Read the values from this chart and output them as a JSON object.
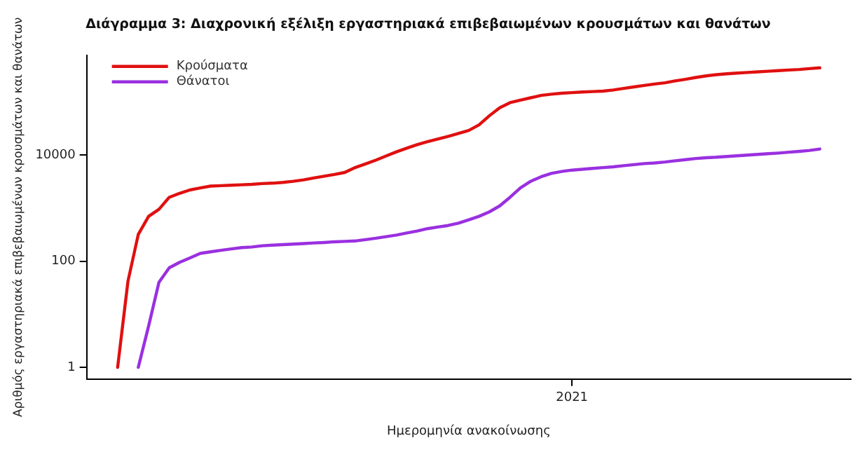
{
  "chart_data": {
    "type": "line",
    "title": "Διάγραμμα 3: Διαχρονική εξέλιξη εργαστηριακά επιβεβαιωμένων κρουσμάτων και θανάτων",
    "xlabel": "Ημερομηνία ανακοίνωσης",
    "ylabel": "Αριθμός εργαστηριακά επιβεβαιωμένων κρουσμάτων και θανάτων",
    "log": "y",
    "grid": false,
    "legend": "top left",
    "marker": "none",
    "line_style": "solid",
    "categories": [
      null,
      null,
      null,
      null,
      null,
      null,
      null,
      null,
      null,
      null,
      null,
      null,
      null,
      null,
      null,
      null,
      null,
      null,
      null,
      null,
      null,
      null,
      null,
      null,
      null,
      null,
      null,
      null,
      null,
      null,
      null,
      null,
      null,
      null,
      null,
      null,
      null,
      null,
      null,
      null,
      null,
      null,
      null,
      null,
      null,
      null,
      null,
      "2021",
      null,
      null,
      null,
      null,
      null,
      null,
      null,
      null,
      null,
      null,
      null,
      null,
      null,
      null,
      null,
      null,
      null,
      null,
      null,
      null,
      null,
      null,
      null,
      null,
      null,
      null,
      null
    ],
    "ylim": [
      0.6,
      760000
    ],
    "yticks": [
      1,
      100,
      10000
    ],
    "series": [
      {
        "name": "Κρούσματα",
        "color": "#e01010",
        "values": [
          null,
          null,
          null,
          1,
          42,
          320,
          700,
          950,
          1600,
          1900,
          2200,
          2400,
          2600,
          2650,
          2700,
          2750,
          2800,
          2900,
          2950,
          3050,
          3200,
          3400,
          3700,
          4000,
          4300,
          4700,
          5800,
          6800,
          8000,
          9600,
          11500,
          13500,
          15700,
          17800,
          20000,
          22500,
          25500,
          29000,
          37000,
          55000,
          78000,
          97000,
          108000,
          120000,
          133000,
          140000,
          146000,
          150000,
          154000,
          157000,
          160000,
          168000,
          180000,
          192000,
          205000,
          218000,
          230000,
          250000,
          268000,
          290000,
          310000,
          327000,
          340000,
          350000,
          360000,
          370000,
          380000,
          390000,
          400000,
          410000,
          425000,
          440000,
          null,
          null,
          null
        ]
      },
      {
        "name": "Θάνατοι",
        "color": "#9a30e0",
        "values": [
          null,
          null,
          null,
          null,
          null,
          1,
          6,
          40,
          75,
          95,
          115,
          140,
          150,
          160,
          170,
          180,
          185,
          195,
          200,
          205,
          210,
          215,
          220,
          225,
          232,
          236,
          240,
          255,
          270,
          290,
          310,
          340,
          370,
          410,
          440,
          470,
          520,
          600,
          700,
          850,
          1100,
          1600,
          2400,
          3200,
          3900,
          4500,
          4900,
          5200,
          5400,
          5600,
          5800,
          6000,
          6300,
          6600,
          6900,
          7100,
          7400,
          7800,
          8200,
          8600,
          8900,
          9100,
          9400,
          9700,
          10000,
          10300,
          10600,
          10900,
          11300,
          11700,
          12200,
          13000,
          null,
          null,
          null
        ]
      }
    ]
  }
}
